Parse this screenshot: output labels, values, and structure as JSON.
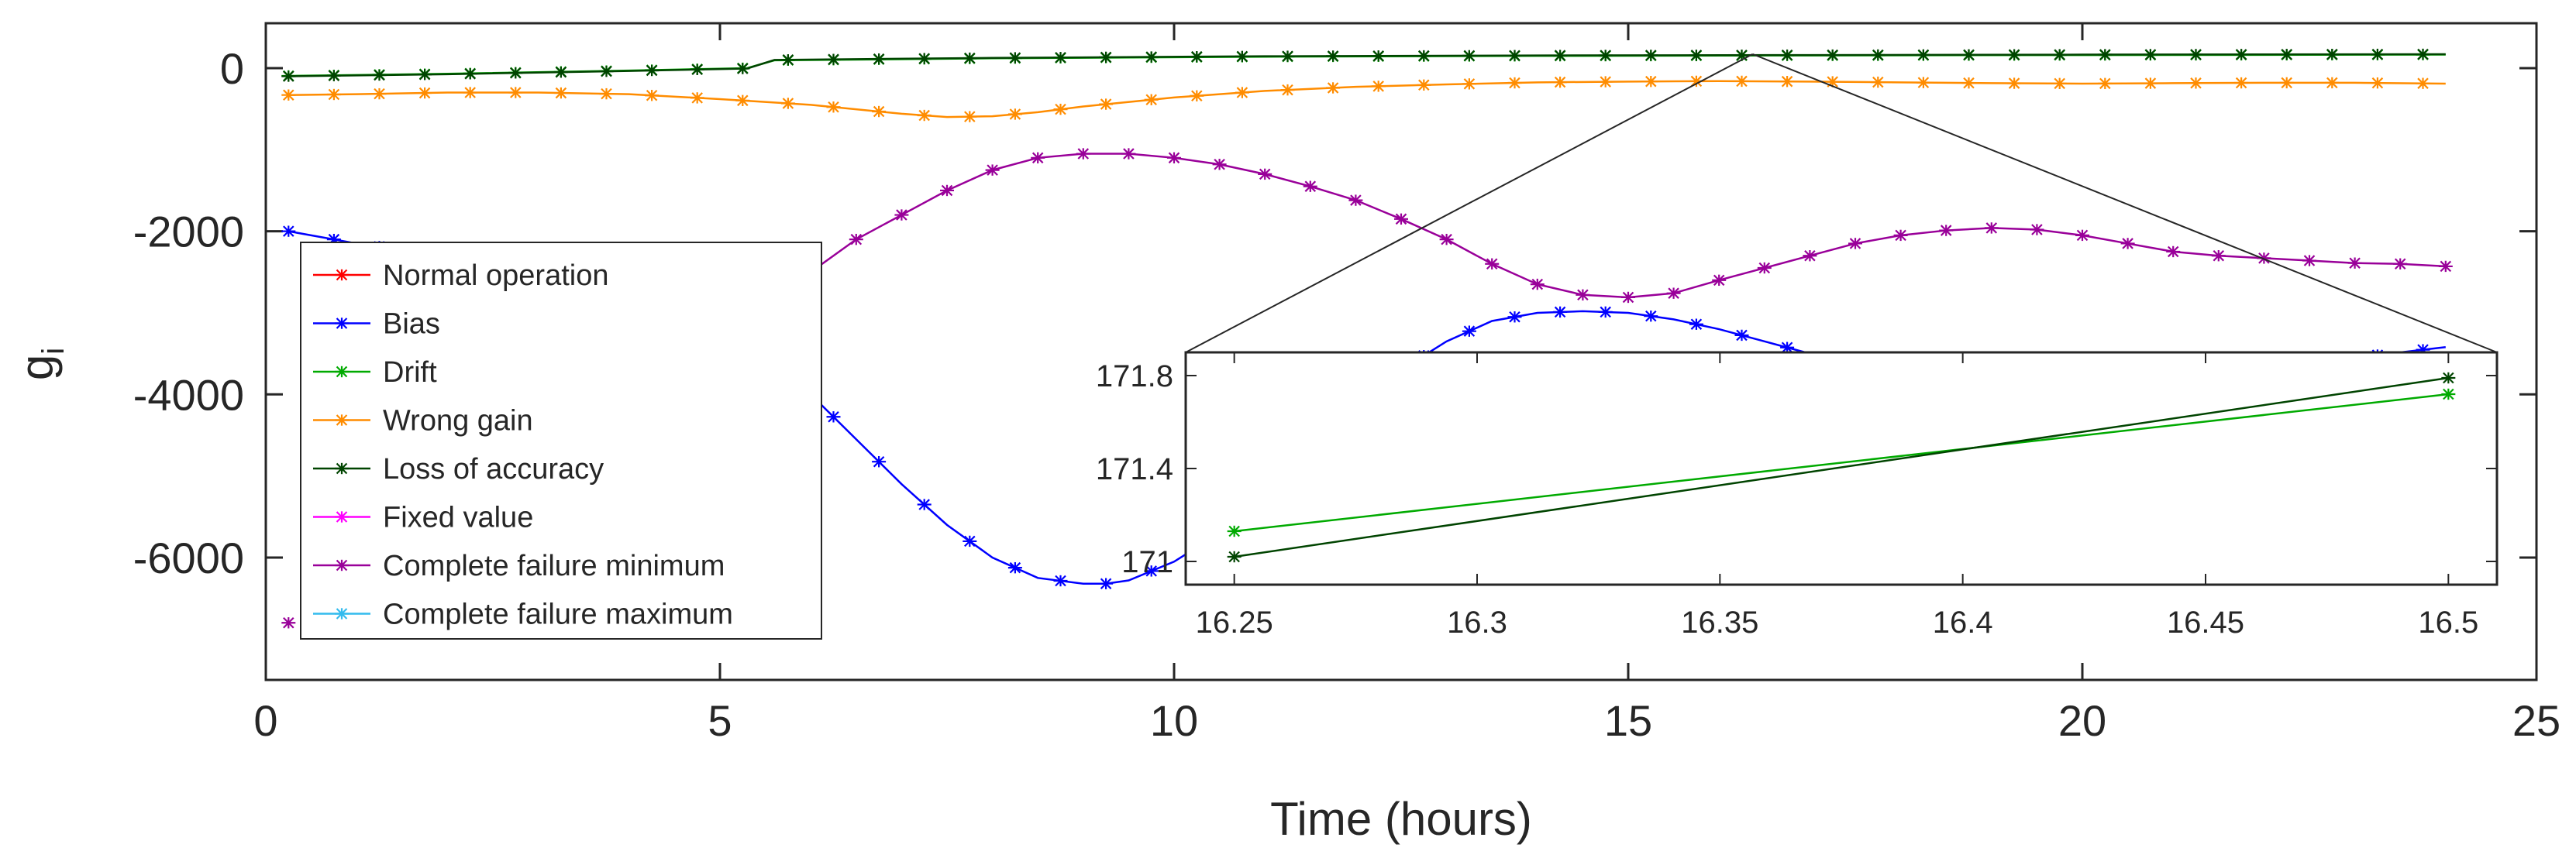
{
  "chart_data": [
    {
      "type": "line",
      "title": "",
      "xlabel": "Time (hours)",
      "ylabel": "g",
      "ylabel_subscript": "i",
      "xlim": [
        0,
        25
      ],
      "ylim": [
        -7500,
        550
      ],
      "xticks": [
        0,
        5,
        10,
        15,
        20,
        25
      ],
      "yticks": [
        0,
        -2000,
        -4000,
        -6000
      ],
      "grid": false,
      "legend_position": "bottom-left",
      "series": [
        {
          "name": "Normal operation",
          "color": "#ff0000",
          "x": [],
          "y": []
        },
        {
          "name": "Bias",
          "color": "#0000ff",
          "x": [
            0.25,
            1,
            2,
            3,
            4,
            5,
            6,
            6.5,
            7,
            7.5,
            8,
            8.5,
            9,
            9.25,
            9.5,
            10,
            10.5,
            11,
            11.5,
            12,
            12.5,
            13,
            13.5,
            14,
            14.5,
            15,
            15.5,
            16,
            16.5,
            17,
            17.5,
            18,
            19,
            20,
            21,
            22,
            23,
            24
          ],
          "y": [
            -2000,
            -2150,
            -2300,
            -2600,
            -3000,
            -3500,
            -4000,
            -4550,
            -5100,
            -5600,
            -6000,
            -6250,
            -6320,
            -6320,
            -6280,
            -6050,
            -5700,
            -5200,
            -4650,
            -4150,
            -3700,
            -3350,
            -3100,
            -3000,
            -2980,
            -3000,
            -3080,
            -3200,
            -3350,
            -3500,
            -3650,
            -3800,
            -3900,
            -3850,
            -3750,
            -3650,
            -3550,
            -3420
          ]
        },
        {
          "name": "Drift",
          "color": "#00aa00",
          "x": [
            0.25,
            2,
            4,
            5.3,
            5.6,
            8,
            11,
            14,
            17,
            20,
            24
          ],
          "y": [
            -95,
            -70,
            -30,
            0,
            95,
            120,
            140,
            150,
            155,
            160,
            165
          ]
        },
        {
          "name": "Wrong gain",
          "color": "#ff8c00",
          "x": [
            0.25,
            1,
            2,
            3,
            4,
            5,
            6,
            7,
            7.5,
            8,
            8.5,
            9,
            10,
            11,
            12,
            13,
            14,
            15,
            16,
            17,
            18,
            19,
            20,
            21,
            22,
            23,
            24
          ],
          "y": [
            -330,
            -320,
            -300,
            -300,
            -320,
            -380,
            -450,
            -560,
            -600,
            -590,
            -540,
            -470,
            -360,
            -280,
            -230,
            -200,
            -175,
            -165,
            -160,
            -165,
            -175,
            -185,
            -190,
            -185,
            -180,
            -180,
            -190
          ]
        },
        {
          "name": "Loss of accuracy",
          "color": "#004400",
          "x": [
            0.25,
            2,
            4,
            5.3,
            5.6,
            8,
            11,
            14,
            17,
            20,
            24
          ],
          "y": [
            -100,
            -75,
            -35,
            -5,
            100,
            125,
            145,
            155,
            160,
            165,
            170
          ]
        },
        {
          "name": "Fixed value",
          "color": "#ff00ff",
          "x": [],
          "y": []
        },
        {
          "name": "Complete failure minimum",
          "color": "#990099",
          "x": [
            3.5,
            4,
            5,
            5.5,
            6,
            6.5,
            7,
            7.5,
            8,
            8.5,
            9,
            9.5,
            10,
            10.5,
            11,
            11.5,
            12,
            12.5,
            13,
            13.5,
            14,
            14.5,
            15,
            15.5,
            16,
            16.5,
            17,
            17.5,
            18,
            18.5,
            19,
            19.5,
            20,
            20.5,
            21,
            21.5,
            22,
            22.5,
            23,
            23.5,
            24
          ],
          "y": [
            -4300,
            -3900,
            -3200,
            -2850,
            -2500,
            -2100,
            -1800,
            -1500,
            -1250,
            -1100,
            -1050,
            -1050,
            -1100,
            -1180,
            -1300,
            -1450,
            -1620,
            -1850,
            -2100,
            -2400,
            -2650,
            -2780,
            -2810,
            -2760,
            -2600,
            -2450,
            -2300,
            -2150,
            -2050,
            -1990,
            -1960,
            -1980,
            -2050,
            -2150,
            -2250,
            -2300,
            -2330,
            -2360,
            -2390,
            -2400,
            -2430
          ]
        },
        {
          "name": "Complete failure maximum",
          "color": "#33bbee",
          "x": [],
          "y": []
        }
      ],
      "extra_markers": [
        {
          "series": "Complete failure minimum",
          "x": 0.25,
          "y": -6800
        }
      ]
    },
    {
      "type": "line",
      "role": "inset",
      "xlim": [
        16.24,
        16.51
      ],
      "ylim": [
        170.9,
        171.9
      ],
      "xticks": [
        16.25,
        16.3,
        16.35,
        16.4,
        16.45,
        16.5
      ],
      "yticks": [
        171.8,
        171.4,
        171
      ],
      "tick_labels_y": [
        "171.8",
        "171.4",
        "171"
      ],
      "zoom_point": {
        "x": 16.37,
        "y": 171.5
      },
      "series": [
        {
          "name": "Drift",
          "color": "#00aa00",
          "x": [
            16.25,
            16.5
          ],
          "y": [
            171.13,
            171.72
          ]
        },
        {
          "name": "Loss of accuracy",
          "color": "#004400",
          "x": [
            16.25,
            16.5
          ],
          "y": [
            171.02,
            171.79
          ]
        }
      ]
    }
  ]
}
